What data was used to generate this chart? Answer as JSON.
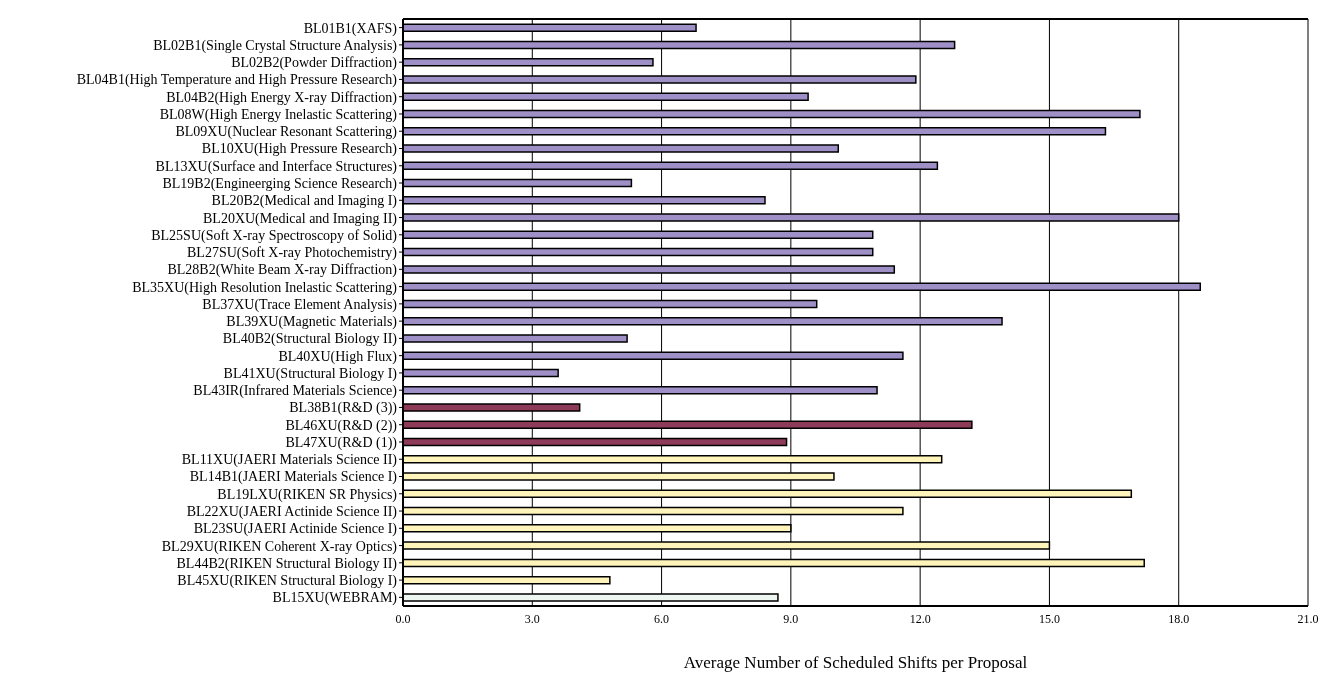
{
  "chart_data": {
    "type": "bar",
    "orientation": "horizontal",
    "xlabel": "Average Number of Scheduled Shifts per Proposal",
    "categories": [
      "BL01B1(XAFS)",
      "BL02B1(Single Crystal Structure Analysis)",
      "BL02B2(Powder Diffraction)",
      "BL04B1(High Temperature and High Pressure Research)",
      "BL04B2(High Energy X-ray Diffraction)",
      "BL08W(High Energy Inelastic Scattering)",
      "BL09XU(Nuclear Resonant Scattering)",
      "BL10XU(High Pressure Research)",
      "BL13XU(Surface and Interface Structures)",
      "BL19B2(Engineerging Science Research)",
      "BL20B2(Medical and Imaging I)",
      "BL20XU(Medical and Imaging II)",
      "BL25SU(Soft X-ray Spectroscopy of Solid)",
      "BL27SU(Soft X-ray Photochemistry)",
      "BL28B2(White Beam X-ray Diffraction)",
      "BL35XU(High Resolution Inelastic Scattering)",
      "BL37XU(Trace Element Analysis)",
      "BL39XU(Magnetic Materials)",
      "BL40B2(Structural Biology II)",
      "BL40XU(High Flux)",
      "BL41XU(Structural Biology I)",
      "BL43IR(Infrared Materials Science)",
      "BL38B1(R&D (3))",
      "BL46XU(R&D (2))",
      "BL47XU(R&D (1))",
      "BL11XU(JAERI Materials Science II)",
      "BL14B1(JAERI Materials Science I)",
      "BL19LXU(RIKEN SR Physics)",
      "BL22XU(JAERI Actinide Science II)",
      "BL23SU(JAERI Actinide Science I)",
      "BL29XU(RIKEN Coherent X-ray Optics)",
      "BL44B2(RIKEN Structural Biology II)",
      "BL45XU(RIKEN Structural Biology I)",
      "BL15XU(WEBRAM)"
    ],
    "values": [
      6.8,
      12.8,
      5.8,
      11.9,
      9.4,
      17.1,
      16.3,
      10.1,
      12.4,
      5.3,
      8.4,
      18.0,
      10.9,
      10.9,
      11.4,
      18.5,
      9.6,
      13.9,
      5.2,
      11.6,
      3.6,
      11.0,
      4.1,
      13.2,
      8.9,
      12.5,
      10.0,
      16.9,
      11.6,
      9.0,
      15.0,
      17.2,
      4.8,
      8.7
    ],
    "colors": [
      "#9f8fc7",
      "#9f8fc7",
      "#9f8fc7",
      "#9f8fc7",
      "#9f8fc7",
      "#9f8fc7",
      "#9f8fc7",
      "#9f8fc7",
      "#9f8fc7",
      "#9f8fc7",
      "#9f8fc7",
      "#9f8fc7",
      "#9f8fc7",
      "#9f8fc7",
      "#9f8fc7",
      "#9f8fc7",
      "#9f8fc7",
      "#9f8fc7",
      "#9f8fc7",
      "#9f8fc7",
      "#9f8fc7",
      "#9f8fc7",
      "#8e3a59",
      "#8e3a59",
      "#8e3a59",
      "#fff5bb",
      "#fff5bb",
      "#fff5bb",
      "#fff5bb",
      "#fff5bb",
      "#fff5bb",
      "#fff5bb",
      "#fff5bb",
      "#eef6f2"
    ],
    "xlim": [
      0,
      21
    ],
    "xticks": [
      {
        "value": 0,
        "label": "0.0"
      },
      {
        "value": 3,
        "label": "3.0"
      },
      {
        "value": 6,
        "label": "6.0"
      },
      {
        "value": 9,
        "label": "9.0"
      },
      {
        "value": 12,
        "label": "12.0"
      },
      {
        "value": 15,
        "label": "15.0"
      },
      {
        "value": 18,
        "label": "18.0"
      },
      {
        "value": 21,
        "label": "21.0"
      }
    ],
    "grid": "x",
    "legend": false
  }
}
